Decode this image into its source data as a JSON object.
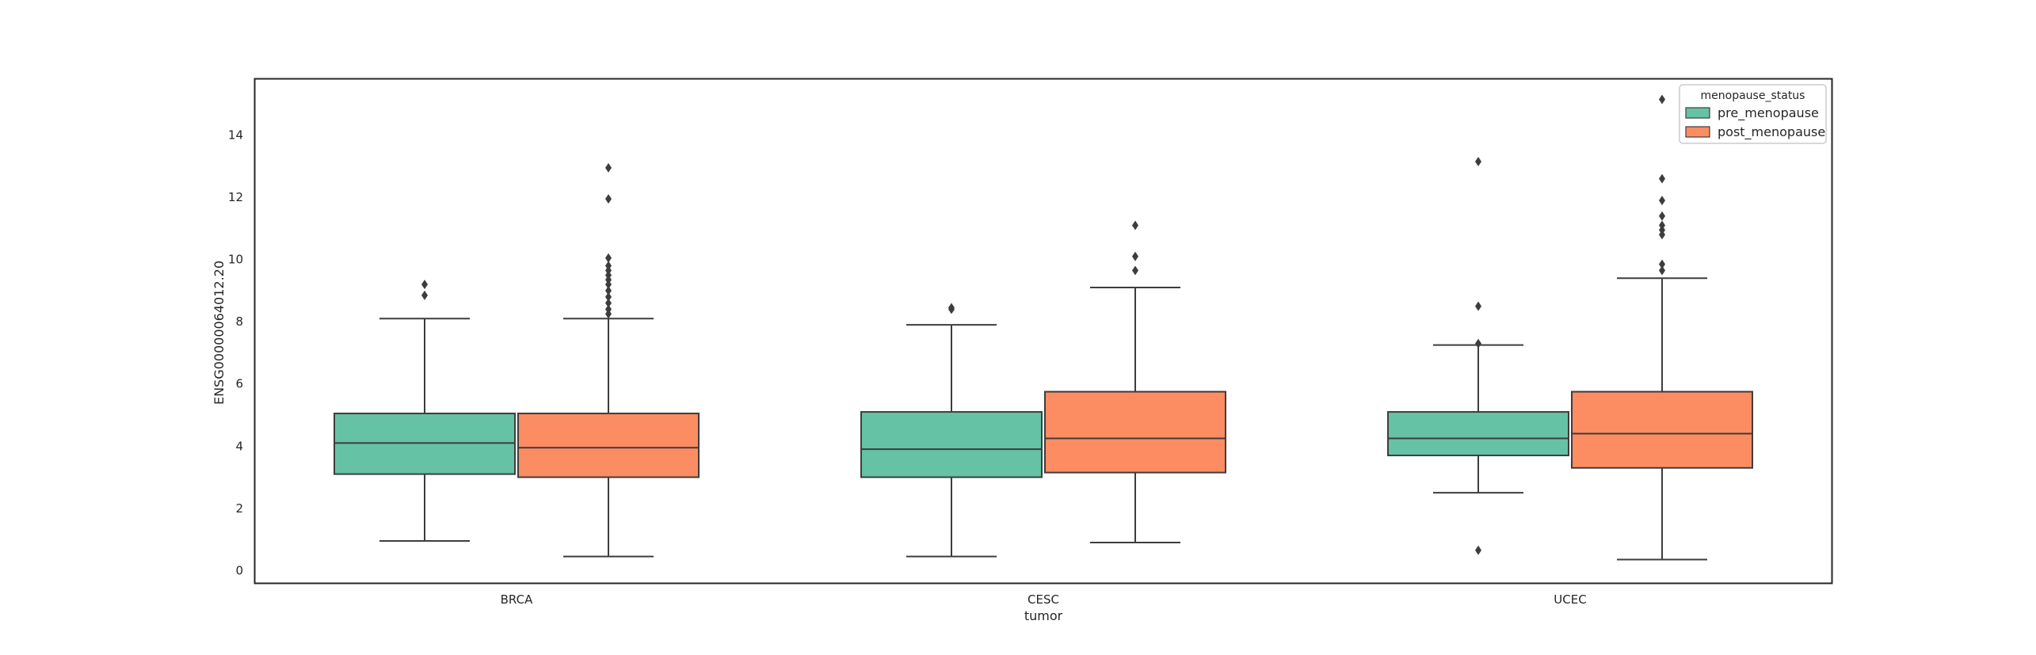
{
  "chart_data": {
    "type": "box",
    "xlabel": "tumor",
    "ylabel": "ENSG00000064012.20",
    "categories": [
      "BRCA",
      "CESC",
      "UCEC"
    ],
    "ylim": [
      -0.4,
      15.8
    ],
    "yticks": [
      "0",
      "2",
      "4",
      "6",
      "8",
      "10",
      "12",
      "14"
    ],
    "grid": false,
    "legend": {
      "title": "menopause_status",
      "placement": "top-right",
      "entries": [
        "pre_menopause",
        "post_menopause"
      ]
    },
    "series": [
      {
        "name": "pre_menopause",
        "color": "#66c2a5",
        "boxes": [
          {
            "category": "BRCA",
            "whisker_low": 0.95,
            "q1": 3.1,
            "median": 4.1,
            "q3": 5.05,
            "whisker_high": 8.1,
            "outliers": [
              8.85,
              9.2
            ]
          },
          {
            "category": "CESC",
            "whisker_low": 0.45,
            "q1": 3.0,
            "median": 3.9,
            "q3": 5.1,
            "whisker_high": 7.9,
            "outliers": [
              8.4,
              8.45
            ]
          },
          {
            "category": "UCEC",
            "whisker_low": 2.5,
            "q1": 3.7,
            "median": 4.25,
            "q3": 5.1,
            "whisker_high": 7.25,
            "outliers": [
              0.65,
              7.3,
              8.5,
              13.15
            ]
          }
        ]
      },
      {
        "name": "post_menopause",
        "color": "#fc8d62",
        "boxes": [
          {
            "category": "BRCA",
            "whisker_low": 0.45,
            "q1": 3.0,
            "median": 3.95,
            "q3": 5.05,
            "whisker_high": 8.1,
            "outliers": [
              8.25,
              8.4,
              8.6,
              8.8,
              9.0,
              9.2,
              9.35,
              9.5,
              9.65,
              9.8,
              10.05,
              11.95,
              12.95
            ]
          },
          {
            "category": "CESC",
            "whisker_low": 0.9,
            "q1": 3.15,
            "median": 4.25,
            "q3": 5.75,
            "whisker_high": 9.1,
            "outliers": [
              9.65,
              10.1,
              11.1
            ]
          },
          {
            "category": "UCEC",
            "whisker_low": 0.35,
            "q1": 3.3,
            "median": 4.4,
            "q3": 5.75,
            "whisker_high": 9.4,
            "outliers": [
              9.65,
              9.85,
              10.8,
              10.95,
              11.1,
              11.4,
              11.9,
              12.6,
              15.15
            ]
          }
        ]
      }
    ]
  }
}
